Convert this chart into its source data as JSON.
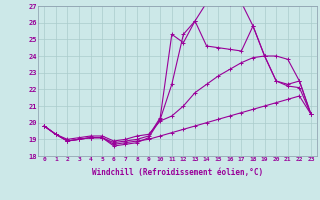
{
  "xlabel": "Windchill (Refroidissement éolien,°C)",
  "bg_color": "#cce8e8",
  "line_color": "#990099",
  "grid_color": "#aacccc",
  "xlim_min": -0.5,
  "xlim_max": 23.5,
  "ylim_min": 18,
  "ylim_max": 27,
  "yticks": [
    18,
    19,
    20,
    21,
    22,
    23,
    24,
    25,
    26,
    27
  ],
  "xticks": [
    0,
    1,
    2,
    3,
    4,
    5,
    6,
    7,
    8,
    9,
    10,
    11,
    12,
    13,
    14,
    15,
    16,
    17,
    18,
    19,
    20,
    21,
    22,
    23
  ],
  "series": [
    {
      "x": [
        0,
        1,
        2,
        3,
        4,
        5,
        6,
        7,
        8,
        9,
        10,
        11,
        12,
        13,
        14,
        15,
        16,
        17,
        18,
        19,
        20,
        21,
        22,
        23
      ],
      "y": [
        19.8,
        19.3,
        18.9,
        19.0,
        19.1,
        19.1,
        18.6,
        18.7,
        18.8,
        19.1,
        20.2,
        22.3,
        25.3,
        26.1,
        27.2,
        27.3,
        27.1,
        27.2,
        25.8,
        24.0,
        22.5,
        22.2,
        22.1,
        20.5
      ]
    },
    {
      "x": [
        0,
        1,
        2,
        3,
        4,
        5,
        6,
        7,
        8,
        9,
        10,
        11,
        12,
        13,
        14,
        15,
        16,
        17,
        18,
        19,
        20,
        21,
        22,
        23
      ],
      "y": [
        19.8,
        19.3,
        18.9,
        19.0,
        19.1,
        19.1,
        18.8,
        18.9,
        19.0,
        19.2,
        20.3,
        25.3,
        24.8,
        26.1,
        24.6,
        24.5,
        24.4,
        24.3,
        25.8,
        24.0,
        22.5,
        22.3,
        22.5,
        20.5
      ]
    },
    {
      "x": [
        0,
        1,
        2,
        3,
        4,
        5,
        6,
        7,
        8,
        9,
        10,
        11,
        12,
        13,
        14,
        15,
        16,
        17,
        18,
        19,
        20,
        21,
        22,
        23
      ],
      "y": [
        19.8,
        19.3,
        19.0,
        19.1,
        19.2,
        19.2,
        18.9,
        19.0,
        19.2,
        19.3,
        20.1,
        20.4,
        21.0,
        21.8,
        22.3,
        22.8,
        23.2,
        23.6,
        23.9,
        24.0,
        24.0,
        23.8,
        22.5,
        20.5
      ]
    },
    {
      "x": [
        0,
        1,
        2,
        3,
        4,
        5,
        6,
        7,
        8,
        9,
        10,
        11,
        12,
        13,
        14,
        15,
        16,
        17,
        18,
        19,
        20,
        21,
        22,
        23
      ],
      "y": [
        19.8,
        19.3,
        18.9,
        19.0,
        19.1,
        19.1,
        18.7,
        18.8,
        18.9,
        19.0,
        19.2,
        19.4,
        19.6,
        19.8,
        20.0,
        20.2,
        20.4,
        20.6,
        20.8,
        21.0,
        21.2,
        21.4,
        21.6,
        20.5
      ]
    }
  ]
}
